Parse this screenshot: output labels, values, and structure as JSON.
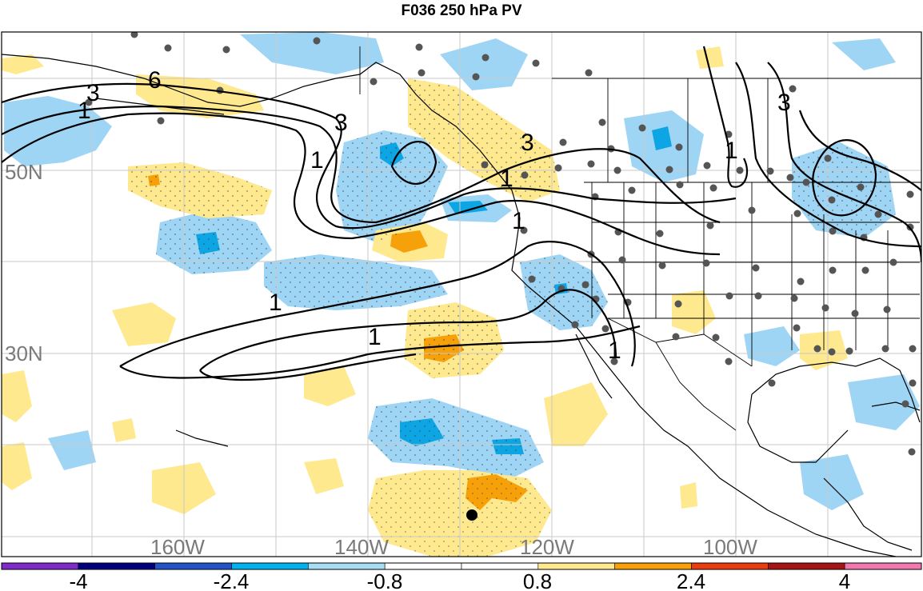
{
  "title": "F036 250 hPa PV",
  "colors": {
    "neg_dark": "#2d1f9a",
    "neg_strong": "#0ea5e4",
    "neg_mid": "#9ed5f4",
    "pos_mid": "#ffe98f",
    "pos_strong": "#f7a10a",
    "station": "#555555",
    "land_line": "#000000",
    "grid": "#c9c9c9"
  },
  "map": {
    "lat_labels": [
      "50N",
      "30N"
    ],
    "lon_labels": [
      "160W",
      "140W",
      "120W",
      "100W"
    ],
    "contour_labels": [
      "6",
      "3",
      "1",
      "3",
      "1",
      "3",
      "1",
      "1",
      "1",
      "1",
      "3",
      "1",
      "1"
    ]
  },
  "colorbar": {
    "labels": [
      "-4",
      "-2.4",
      "-0.8",
      "0.8",
      "2.4",
      "4"
    ],
    "swatches": [
      "#7e2bc9",
      "#00007f",
      "#2453c7",
      "#00b3f0",
      "#a7ddf5",
      "#ffffff",
      "#ffffff",
      "#ffe98f",
      "#f7a10a",
      "#ea3c10",
      "#a51515",
      "#f07ab0"
    ]
  }
}
